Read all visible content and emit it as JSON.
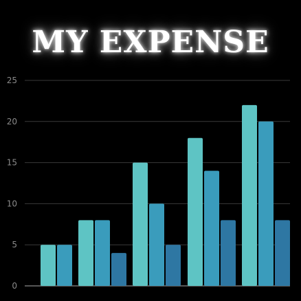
{
  "title": "MY EXPENSE",
  "chart_data": {
    "type": "bar",
    "title": "MY EXPENSE",
    "xlabel": "",
    "ylabel": "",
    "ylim": [
      0,
      25
    ],
    "yticks": [
      "0",
      "5",
      "10",
      "15",
      "20",
      "25"
    ],
    "grid": true,
    "legend": "none",
    "categories": [
      "",
      "",
      "",
      "",
      ""
    ],
    "series": [
      {
        "values": [
          5,
          8,
          15,
          18,
          22
        ]
      },
      {
        "values": [
          5,
          8,
          10,
          14,
          20
        ]
      },
      {
        "values": [
          0,
          4,
          5,
          8,
          8
        ]
      }
    ],
    "colors": [
      "#5ec4c4",
      "#3a9cbc",
      "#2e77a3"
    ],
    "grid_color": "#3a3a3a",
    "axis_color": "#8a8a8a"
  }
}
